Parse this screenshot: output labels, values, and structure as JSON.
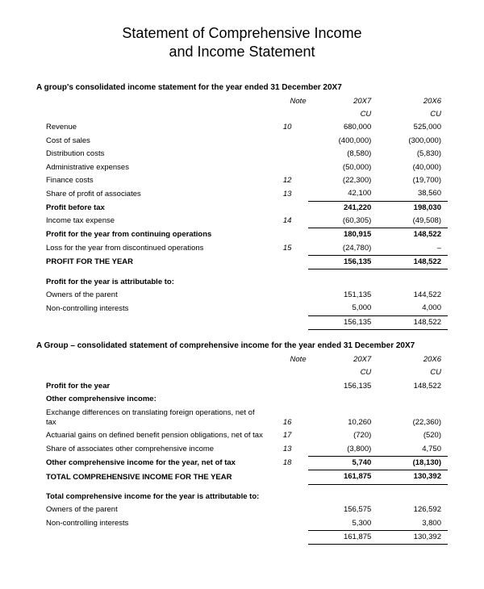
{
  "title_line1": "Statement of Comprehensive Income",
  "title_line2": "and Income Statement",
  "colors": {
    "text": "#000000",
    "background": "#ffffff",
    "rule": "#000000"
  },
  "typography": {
    "title_fontsize_pt": 18,
    "body_fontsize_pt": 9.5,
    "sub_fontsize_pt": 10
  },
  "section1": {
    "heading": "A group's consolidated income statement for the year ended 31 December 20X7",
    "note_hdr": "Note",
    "year1": "20X7",
    "year2": "20X6",
    "unit1": "CU",
    "unit2": "CU",
    "rows": [
      {
        "label": "Revenue",
        "note": "10",
        "y1": "680,000",
        "y2": "525,000"
      },
      {
        "label": "Cost of sales",
        "note": "",
        "y1": "(400,000)",
        "y2": "(300,000)"
      },
      {
        "label": "Distribution costs",
        "note": "",
        "y1": "(8,580)",
        "y2": "(5,830)"
      },
      {
        "label": "Administrative expenses",
        "note": "",
        "y1": "(50,000)",
        "y2": "(40,000)"
      },
      {
        "label": "Finance costs",
        "note": "12",
        "y1": "(22,300)",
        "y2": "(19,700)"
      },
      {
        "label": "Share of profit of associates",
        "note": "13",
        "y1": "42,100",
        "y2": "38,560",
        "underline": true
      },
      {
        "label": "Profit before tax",
        "note": "",
        "y1": "241,220",
        "y2": "198,030",
        "bold": true
      },
      {
        "label": "Income tax expense",
        "note": "14",
        "y1": "(60,305)",
        "y2": "(49,508)",
        "underline": true
      },
      {
        "label": "Profit for the year from continuing operations",
        "note": "",
        "y1": "180,915",
        "y2": "148,522",
        "bold": true
      },
      {
        "label": "Loss for the year from discontinued operations",
        "note": "15",
        "y1": "(24,780)",
        "y2": "–",
        "underline": true
      },
      {
        "label": "PROFIT FOR THE YEAR",
        "note": "",
        "y1": "156,135",
        "y2": "148,522",
        "bold": true,
        "underline": true
      }
    ],
    "attrib_heading": "Profit for the year is attributable to:",
    "attrib_rows": [
      {
        "label": "Owners of the parent",
        "y1": "151,135",
        "y2": "144,522"
      },
      {
        "label": "Non-controlling interests",
        "y1": "5,000",
        "y2": "4,000",
        "underline": true
      },
      {
        "label": "",
        "y1": "156,135",
        "y2": "148,522",
        "double": true
      }
    ]
  },
  "section2": {
    "heading": "A Group – consolidated statement of comprehensive income for the year ended 31 December 20X7",
    "note_hdr": "Note",
    "year1": "20X7",
    "year2": "20X6",
    "unit1": "CU",
    "unit2": "CU",
    "profit_label": "Profit for the year",
    "profit_y1": "156,135",
    "profit_y2": "148,522",
    "oci_heading": "Other comprehensive income:",
    "rows": [
      {
        "label": "Exchange differences on translating foreign operations, net of tax",
        "note": "16",
        "y1": "10,260",
        "y2": "(22,360)"
      },
      {
        "label": "Actuarial gains on defined benefit pension obligations, net of tax",
        "note": "17",
        "y1": "(720)",
        "y2": "(520)"
      },
      {
        "label": "Share of associates other comprehensive income",
        "note": "13",
        "y1": "(3,800)",
        "y2": "4,750",
        "underline": true
      },
      {
        "label": "Other comprehensive income for the year, net of tax",
        "note": "18",
        "y1": "5,740",
        "y2": "(18,130)",
        "bold": true,
        "underline": true
      },
      {
        "label": "TOTAL COMPREHENSIVE INCOME FOR THE YEAR",
        "note": "",
        "y1": "161,875",
        "y2": "130,392",
        "bold": true,
        "underline": true
      }
    ],
    "attrib_heading": "Total comprehensive income for the year is attributable to:",
    "attrib_rows": [
      {
        "label": "Owners of the parent",
        "y1": "156,575",
        "y2": "126,592"
      },
      {
        "label": "Non-controlling interests",
        "y1": "5,300",
        "y2": "3,800",
        "underline": true
      },
      {
        "label": "",
        "y1": "161,875",
        "y2": "130,392",
        "double": true
      }
    ]
  }
}
